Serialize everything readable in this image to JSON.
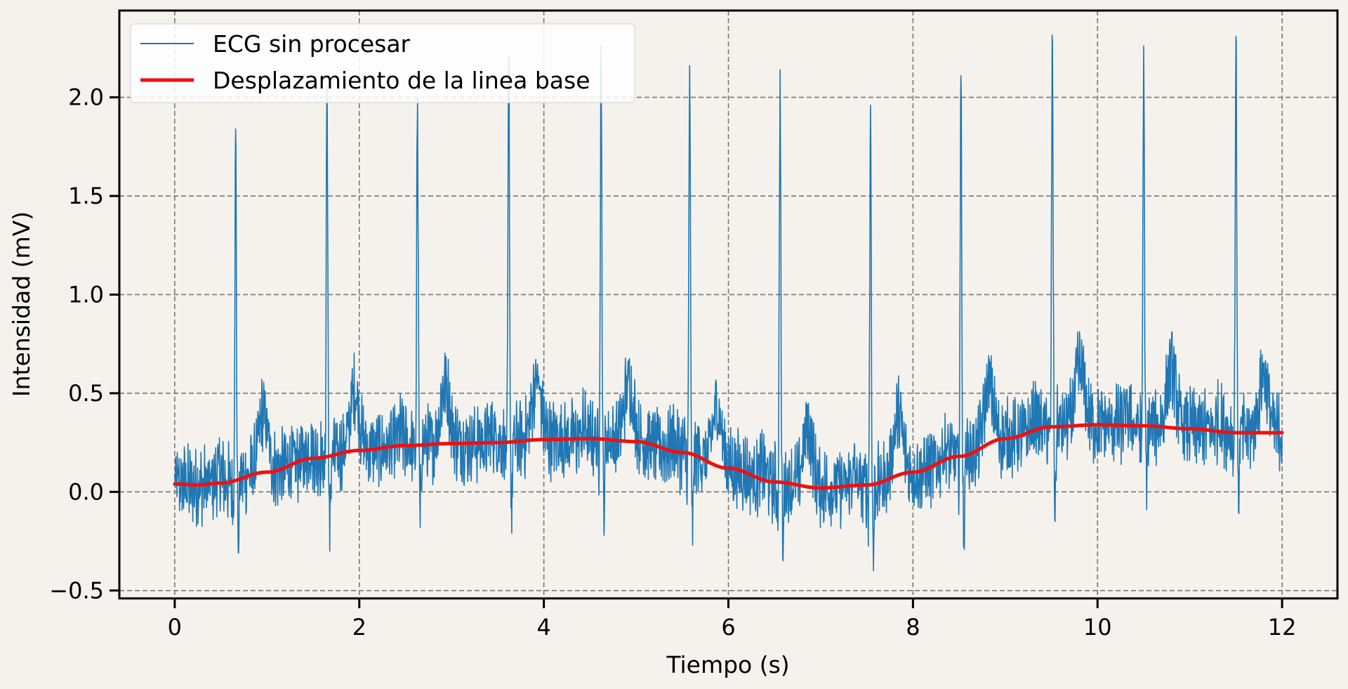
{
  "chart_data": {
    "type": "line",
    "title": "",
    "xlabel": "Tiempo (s)",
    "ylabel": "Intensidad (mV)",
    "xlim": [
      -0.6,
      12.6
    ],
    "ylim": [
      -0.54,
      2.44
    ],
    "x_ticks": [
      0,
      2,
      4,
      6,
      8,
      10,
      12
    ],
    "x_tick_labels": [
      "0",
      "2",
      "4",
      "6",
      "8",
      "10",
      "12"
    ],
    "y_ticks": [
      -0.5,
      0.0,
      0.5,
      1.0,
      1.5,
      2.0
    ],
    "y_tick_labels": [
      "−0.5",
      "0.0",
      "0.5",
      "1.0",
      "1.5",
      "2.0"
    ],
    "grid": true,
    "legend_position": "top-left",
    "series": [
      {
        "name": "ECG sin procesar",
        "color": "#1f77b4",
        "sampling_rate_hz": 250,
        "duration_s": 12,
        "r_peaks": [
          {
            "t": 0.66,
            "amp": 1.84,
            "min": -0.31
          },
          {
            "t": 1.65,
            "amp": 2.06,
            "min": -0.3
          },
          {
            "t": 2.63,
            "amp": 2.0,
            "min": -0.18
          },
          {
            "t": 3.62,
            "amp": 2.21,
            "min": -0.21
          },
          {
            "t": 4.62,
            "amp": 2.26,
            "min": -0.22
          },
          {
            "t": 5.58,
            "amp": 2.16,
            "min": -0.27
          },
          {
            "t": 6.56,
            "amp": 2.14,
            "min": -0.35
          },
          {
            "t": 7.54,
            "amp": 1.96,
            "min": -0.4
          },
          {
            "t": 8.52,
            "amp": 2.11,
            "min": -0.28
          },
          {
            "t": 9.51,
            "amp": 2.28,
            "min": -0.15
          },
          {
            "t": 10.5,
            "amp": 2.26,
            "min": -0.09
          },
          {
            "t": 11.5,
            "amp": 2.31,
            "min": -0.11
          }
        ]
      },
      {
        "name": "Desplazamiento de la linea base",
        "color": "#ee1111",
        "x": [
          0,
          0.25,
          0.5,
          1,
          1.5,
          2,
          2.5,
          3,
          3.5,
          4,
          4.5,
          5,
          5.5,
          6,
          6.5,
          7,
          7.5,
          8,
          8.5,
          9,
          9.5,
          10,
          10.5,
          11,
          11.5,
          12
        ],
        "values": [
          0.04,
          0.035,
          0.045,
          0.1,
          0.17,
          0.21,
          0.235,
          0.245,
          0.25,
          0.265,
          0.27,
          0.255,
          0.2,
          0.12,
          0.05,
          0.02,
          0.035,
          0.1,
          0.18,
          0.27,
          0.33,
          0.34,
          0.335,
          0.32,
          0.3,
          0.3
        ]
      }
    ]
  }
}
